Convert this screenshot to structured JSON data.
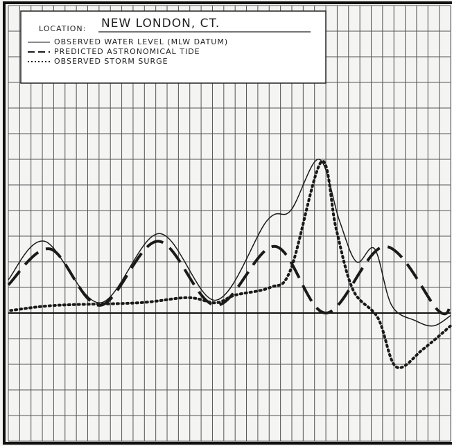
{
  "chart_data": {
    "type": "line",
    "legend_heading": "LOCATION:",
    "location": "NEW LONDON, CT.",
    "xlim": [
      0,
      39
    ],
    "ylim": [
      -5,
      12
    ],
    "xticks": [
      0,
      1,
      2,
      3,
      4,
      5,
      6,
      7,
      8,
      9,
      10,
      11,
      12,
      13,
      14,
      15,
      16,
      17,
      18,
      19,
      20,
      21,
      22,
      23,
      24,
      25,
      26,
      27,
      28,
      29,
      30,
      31,
      32,
      33,
      34,
      35,
      36,
      37,
      38,
      39
    ],
    "yticks": [
      -5,
      -4,
      -3,
      -2,
      -1,
      0,
      1,
      2,
      3,
      4,
      5,
      6,
      7,
      8,
      9,
      10,
      11,
      12
    ],
    "grid": true,
    "legend": "upper left",
    "series": [
      {
        "name": "OBSERVED  WATER  LEVEL (MLW DATUM)",
        "style": "solid",
        "color": "#1a1a1a",
        "x": [
          0,
          3.2,
          8.1,
          13.3,
          18.3,
          22.8,
          24.9,
          27.4,
          29.2,
          30.7,
          32.3,
          33.8,
          35.9,
          37.5,
          39
        ],
        "values": [
          1.3,
          2.8,
          0.4,
          3.1,
          0.5,
          3.6,
          4.0,
          6.0,
          3.6,
          2.0,
          2.5,
          0.3,
          -0.3,
          -0.5,
          -0.1
        ]
      },
      {
        "name": "PREDICTED  ASTRONOMICAL  TIDE",
        "style": "dashed",
        "color": "#1a1a1a",
        "x": [
          0,
          3.7,
          8.1,
          13.2,
          18.3,
          23.5,
          28.0,
          33.2,
          37.9,
          39
        ],
        "values": [
          1.1,
          2.5,
          0.3,
          2.8,
          0.3,
          2.6,
          0.0,
          2.6,
          0.1,
          0.3
        ]
      },
      {
        "name": "OBSERVED  STORM  SURGE",
        "style": "dotted",
        "color": "#1a1a1a",
        "x": [
          0.2,
          4.2,
          11.5,
          15.8,
          18.3,
          20.0,
          23.1,
          24.9,
          27.6,
          28.9,
          30.4,
          32.6,
          34.2,
          36.6,
          39
        ],
        "values": [
          0.1,
          0.3,
          0.4,
          0.6,
          0.4,
          0.7,
          1.0,
          1.7,
          5.9,
          3.3,
          0.9,
          -0.2,
          -2.1,
          -1.4,
          -0.5
        ]
      }
    ]
  }
}
